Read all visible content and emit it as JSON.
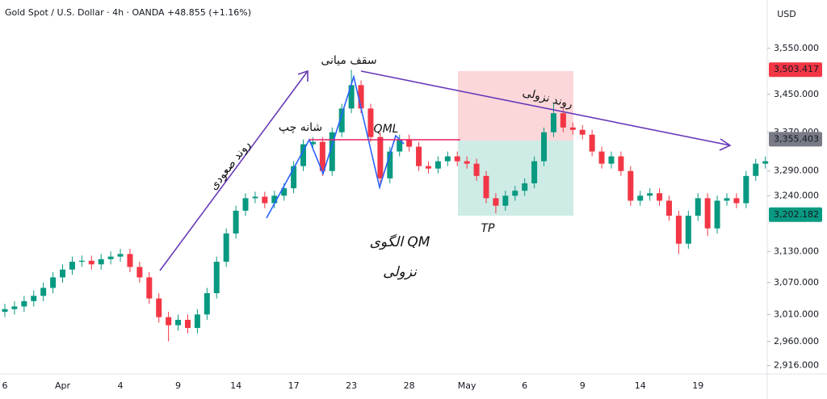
{
  "chart_data": {
    "type": "candlestick",
    "title": "Gold Spot / U.S. Dollar · 4h · OANDA  +48.855 (+1.16%)",
    "currency": "USD",
    "log_scale": true,
    "up_color": "#089981",
    "down_color": "#f23645",
    "categories": [
      "6",
      null,
      null,
      null,
      null,
      null,
      "Apr",
      null,
      null,
      null,
      null,
      null,
      "4",
      null,
      null,
      null,
      null,
      null,
      "9",
      null,
      null,
      null,
      null,
      null,
      "14",
      null,
      null,
      null,
      null,
      null,
      "17",
      null,
      null,
      null,
      null,
      null,
      "23",
      null,
      null,
      null,
      null,
      null,
      "28",
      null,
      null,
      null,
      null,
      null,
      "May",
      null,
      null,
      null,
      null,
      null,
      "6",
      null,
      null,
      null,
      null,
      null,
      "9",
      null,
      null,
      null,
      null,
      null,
      "14",
      null,
      null,
      null,
      null,
      null,
      "19",
      null,
      null,
      null,
      null,
      null,
      null,
      null
    ],
    "open": [
      3015,
      3020,
      3025,
      3035,
      3045,
      3060,
      3080,
      3095,
      3110,
      3112,
      3105,
      3115,
      3120,
      3125,
      3100,
      3080,
      3040,
      3005,
      2990,
      3000,
      2985,
      3010,
      3050,
      3110,
      3165,
      3210,
      3235,
      3238,
      3225,
      3240,
      3255,
      3300,
      3345,
      3350,
      3290,
      3370,
      3420,
      3470,
      3420,
      3360,
      3275,
      3330,
      3355,
      3340,
      3300,
      3295,
      3310,
      3320,
      3310,
      3305,
      3280,
      3235,
      3220,
      3240,
      3250,
      3265,
      3310,
      3370,
      3410,
      3380,
      3375,
      3365,
      3330,
      3305,
      3320,
      3290,
      3230,
      3240,
      3245,
      3230,
      3200,
      3145,
      3200,
      3235,
      3175,
      3230,
      3235,
      3225,
      3280,
      3305
    ],
    "high": [
      3030,
      3035,
      3045,
      3055,
      3070,
      3090,
      3105,
      3120,
      3122,
      3122,
      3125,
      3130,
      3135,
      3135,
      3110,
      3090,
      3050,
      3015,
      3010,
      3010,
      3020,
      3060,
      3120,
      3175,
      3220,
      3245,
      3248,
      3248,
      3250,
      3265,
      3310,
      3355,
      3360,
      3360,
      3380,
      3430,
      3503,
      3480,
      3430,
      3370,
      3340,
      3365,
      3365,
      3350,
      3310,
      3320,
      3330,
      3330,
      3320,
      3315,
      3290,
      3245,
      3250,
      3260,
      3275,
      3320,
      3380,
      3430,
      3420,
      3390,
      3385,
      3375,
      3340,
      3330,
      3330,
      3300,
      3250,
      3255,
      3255,
      3240,
      3210,
      3210,
      3245,
      3245,
      3240,
      3245,
      3245,
      3290,
      3315,
      3320
    ],
    "low": [
      3005,
      3010,
      3015,
      3025,
      3035,
      3050,
      3070,
      3085,
      3100,
      3095,
      3095,
      3105,
      3110,
      3090,
      3070,
      3030,
      2995,
      2960,
      2980,
      2975,
      2975,
      3000,
      3040,
      3100,
      3155,
      3200,
      3225,
      3215,
      3215,
      3230,
      3245,
      3290,
      3335,
      3280,
      3280,
      3360,
      3410,
      3410,
      3350,
      3260,
      3265,
      3320,
      3330,
      3290,
      3285,
      3285,
      3300,
      3300,
      3295,
      3270,
      3225,
      3205,
      3210,
      3230,
      3240,
      3255,
      3300,
      3360,
      3370,
      3365,
      3355,
      3320,
      3295,
      3295,
      3280,
      3220,
      3220,
      3230,
      3220,
      3190,
      3125,
      3135,
      3190,
      3160,
      3165,
      3220,
      3215,
      3215,
      3270,
      3295
    ],
    "close": [
      3020,
      3025,
      3035,
      3045,
      3060,
      3080,
      3095,
      3110,
      3112,
      3105,
      3115,
      3120,
      3125,
      3100,
      3080,
      3040,
      3005,
      2990,
      3000,
      2985,
      3010,
      3050,
      3110,
      3165,
      3210,
      3235,
      3238,
      3225,
      3240,
      3255,
      3300,
      3345,
      3350,
      3290,
      3370,
      3420,
      3470,
      3420,
      3360,
      3275,
      3330,
      3355,
      3340,
      3300,
      3295,
      3310,
      3320,
      3310,
      3305,
      3280,
      3235,
      3220,
      3240,
      3250,
      3265,
      3310,
      3370,
      3410,
      3380,
      3375,
      3365,
      3330,
      3305,
      3320,
      3290,
      3230,
      3240,
      3245,
      3230,
      3200,
      3145,
      3200,
      3235,
      3175,
      3230,
      3235,
      3225,
      3280,
      3305,
      3310
    ],
    "ylim": [
      2901,
      3658
    ],
    "yticks": [
      {
        "value": 3550,
        "label": "3,550.000"
      },
      {
        "value": 3450,
        "label": "3,450.000"
      },
      {
        "value": 3370,
        "label": "3,370.000"
      },
      {
        "value": 3290,
        "label": "3,290.000"
      },
      {
        "value": 3240,
        "label": "3,240.000"
      },
      {
        "value": 3130,
        "label": "3,130.000"
      },
      {
        "value": 3070,
        "label": "3,070.000"
      },
      {
        "value": 3010,
        "label": "3,010.000"
      },
      {
        "value": 2960,
        "label": "2,960.000"
      },
      {
        "value": 2916,
        "label": "2,916.000"
      }
    ],
    "price_labels": [
      {
        "value": 3503.417,
        "label": "3,503.417",
        "color": "#f23645"
      },
      {
        "value": 3355.403,
        "label": "3,355.403",
        "color": "#787b86"
      },
      {
        "value": 3202.182,
        "label": "3,202.182",
        "color": "#089981"
      }
    ],
    "annotations": [
      "سقف میانی",
      "شانه چپ",
      "QML",
      "روند صعودی",
      "روند نزولی",
      "TP",
      "الگوی QM",
      "نزولی"
    ]
  }
}
